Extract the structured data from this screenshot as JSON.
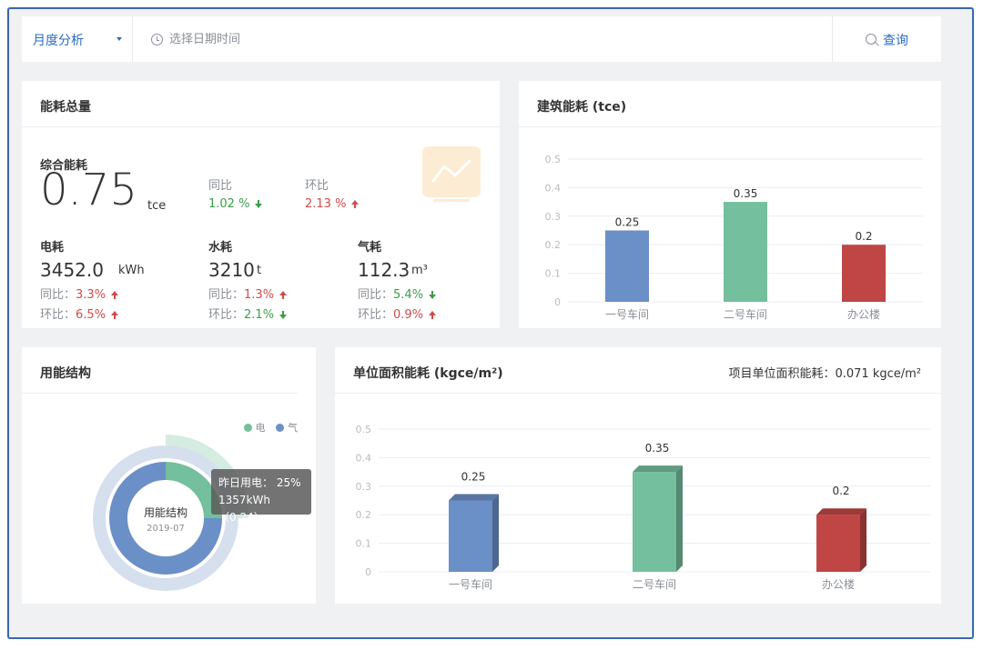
{
  "toolbar": {
    "period": "月度分析",
    "date_placeholder": "选择日期时间",
    "query_label": "查询"
  },
  "energy_total": {
    "title": "能耗总量",
    "composite_label": "综合能耗",
    "composite_value": "0.75",
    "composite_unit": "tce",
    "yoy_label": "同比",
    "yoy_value": "1.02 %",
    "mom_label": "环比",
    "mom_value": "2.13 %",
    "items": [
      {
        "label": "电耗",
        "value": "3452.0",
        "unit": "kWh",
        "yoy_prefix": "同比：",
        "yoy": "3.3%",
        "mom_prefix": "环比：",
        "mom": "6.5%"
      },
      {
        "label": "水耗",
        "value": "3210",
        "unit": "t",
        "yoy_prefix": "同比：",
        "yoy": "1.3%",
        "mom_prefix": "环比：",
        "mom": "2.1%"
      },
      {
        "label": "气耗",
        "value": "112.3",
        "unit": "m³",
        "yoy_prefix": "同比：",
        "yoy": "5.4%",
        "mom_prefix": "环比：",
        "mom": "0.9%"
      }
    ]
  },
  "building": {
    "title": "建筑能耗 (tce)"
  },
  "structure": {
    "title": "用能结构",
    "center_label": "用能结构",
    "center_date": "2019-07",
    "legend": [
      "电",
      "气"
    ],
    "tooltip_line1": "昨日用电： 25%",
    "tooltip_line2": "1357kWh（0.24）"
  },
  "unit_area": {
    "title": "单位面积能耗 (kgce/m²)",
    "summary": "项目单位面积能耗：0.071  kgce/m²"
  },
  "colors": {
    "blue": "#6b8fc7",
    "green": "#74bf9d",
    "red": "#c04545",
    "accent": "#2b6cc4"
  },
  "chart_data": [
    {
      "type": "bar",
      "title": "建筑能耗 (tce)",
      "categories": [
        "一号车间",
        "二号车间",
        "办公楼"
      ],
      "values": [
        0.25,
        0.35,
        0.2
      ],
      "yticks": [
        "0",
        "0.1",
        "0.2",
        "0.3",
        "0.4",
        "0.5"
      ],
      "ylim": [
        0,
        0.5
      ],
      "grid": true
    },
    {
      "type": "bar",
      "title": "单位面积能耗 (kgce/m²)",
      "categories": [
        "一号车间",
        "二号车间",
        "办公楼"
      ],
      "values": [
        0.25,
        0.35,
        0.2
      ],
      "yticks": [
        "0",
        "0.1",
        "0.2",
        "0.3",
        "0.4",
        "0.5"
      ],
      "ylim": [
        0,
        0.5
      ],
      "grid": true
    },
    {
      "type": "pie",
      "title": "用能结构",
      "categories": [
        "电",
        "气"
      ],
      "values": [
        25,
        75
      ]
    }
  ]
}
